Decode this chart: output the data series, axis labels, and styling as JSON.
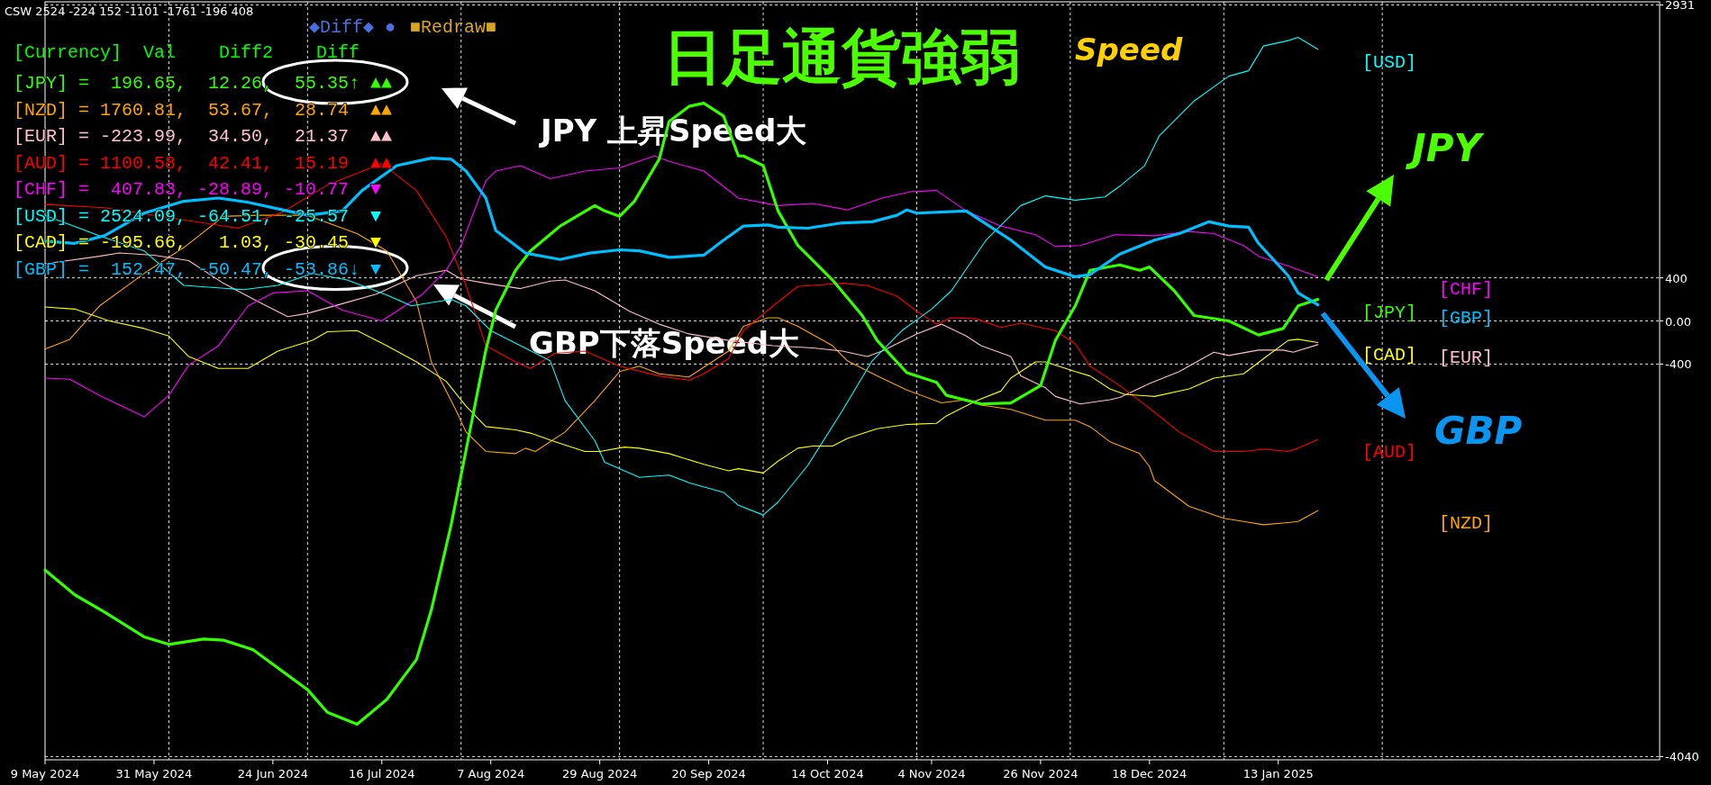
{
  "chart_data": {
    "type": "line",
    "title": "日足通貨強弱",
    "subtitle": "Speed",
    "xlim": [
      "2024-05-09",
      "2025-03-31"
    ],
    "ylim": [
      -4070,
      2960
    ],
    "xticks": [
      {
        "value": "2024-05-09",
        "label": "9 May 2024"
      },
      {
        "value": "2024-05-31",
        "label": "31 May 2024"
      },
      {
        "value": "2024-06-24",
        "label": "24 Jun 2024"
      },
      {
        "value": "2024-07-16",
        "label": "16 Jul 2024"
      },
      {
        "value": "2024-08-07",
        "label": "7 Aug 2024"
      },
      {
        "value": "2024-08-29",
        "label": "29 Aug 2024"
      },
      {
        "value": "2024-09-20",
        "label": "20 Sep 2024"
      },
      {
        "value": "2024-10-14",
        "label": "14 Oct 2024"
      },
      {
        "value": "2024-11-04",
        "label": "4 Nov 2024"
      },
      {
        "value": "2024-11-26",
        "label": "26 Nov 2024"
      },
      {
        "value": "2024-12-18",
        "label": "18 Dec 2024"
      },
      {
        "value": "2025-01-13",
        "label": "13 Jan 2025"
      },
      {
        "value": "2024-06-03",
        "label": null
      },
      {
        "value": "2024-07-01",
        "label": null
      },
      {
        "value": "2024-08-01",
        "label": null
      },
      {
        "value": "2024-09-02",
        "label": null
      },
      {
        "value": "2024-10-01",
        "label": null
      },
      {
        "value": "2024-11-01",
        "label": null
      },
      {
        "value": "2024-12-02",
        "label": null
      },
      {
        "value": "2025-01-02",
        "label": null
      },
      {
        "value": "2025-02-03",
        "label": null
      }
    ],
    "yticks": [
      2931,
      400,
      {
        "value": 0,
        "label": "0.00"
      },
      -400,
      -4040
    ],
    "grid": true,
    "series": [
      {
        "name": "[JPY]",
        "color": "#33ff00",
        "x": [
          "2024-05-09",
          "2024-05-15",
          "2024-05-21",
          "2024-05-29",
          "2024-06-03",
          "2024-06-10",
          "2024-06-14",
          "2024-06-20",
          "2024-07-01",
          "2024-07-05",
          "2024-07-11",
          "2024-07-17",
          "2024-07-23",
          "2024-07-26",
          "2024-07-30",
          "2024-08-02",
          "2024-08-06",
          "2024-08-08",
          "2024-08-12",
          "2024-08-15",
          "2024-08-21",
          "2024-08-28",
          "2024-08-30",
          "2024-09-02",
          "2024-09-05",
          "2024-09-10",
          "2024-09-12",
          "2024-09-16",
          "2024-09-19",
          "2024-09-23",
          "2024-09-26",
          "2024-09-27",
          "2024-10-01",
          "2024-10-04",
          "2024-10-08",
          "2024-10-15",
          "2024-10-21",
          "2024-10-24",
          "2024-10-30",
          "2024-11-05",
          "2024-11-07",
          "2024-11-14",
          "2024-11-20",
          "2024-11-26",
          "2024-11-29",
          "2024-12-03",
          "2024-12-06",
          "2024-12-12",
          "2024-12-16",
          "2024-12-18",
          "2024-12-23",
          "2024-12-27",
          "2025-01-03",
          "2025-01-09",
          "2025-01-14",
          "2025-01-17",
          "2025-01-21"
        ],
        "values": [
          -2310,
          -2540,
          -2700,
          -2930,
          -3000,
          -2950,
          -2960,
          -3050,
          -3420,
          -3630,
          -3740,
          -3510,
          -3140,
          -2680,
          -1890,
          -1200,
          -270,
          100,
          470,
          650,
          880,
          1070,
          1020,
          970,
          1110,
          1500,
          1850,
          1990,
          2020,
          1900,
          1530,
          1530,
          1440,
          1020,
          700,
          380,
          50,
          -180,
          -480,
          -570,
          -690,
          -770,
          -760,
          -600,
          -180,
          140,
          470,
          520,
          470,
          500,
          280,
          50,
          0,
          -130,
          -70,
          140,
          200
        ]
      },
      {
        "name": "[NZD]",
        "color": "#ffa500",
        "x": [
          "2024-05-09",
          "2024-05-14",
          "2024-05-20",
          "2024-05-29",
          "2024-06-06",
          "2024-06-11",
          "2024-06-14",
          "2024-06-21",
          "2024-07-01",
          "2024-07-11",
          "2024-07-17",
          "2024-07-23",
          "2024-07-26",
          "2024-07-31",
          "2024-08-02",
          "2024-08-06",
          "2024-08-12",
          "2024-08-14",
          "2024-08-16",
          "2024-08-22",
          "2024-08-28",
          "2024-09-02",
          "2024-09-06",
          "2024-09-10",
          "2024-09-16",
          "2024-09-24",
          "2024-09-27",
          "2024-10-02",
          "2024-10-04",
          "2024-10-08",
          "2024-10-15",
          "2024-10-18",
          "2024-10-24",
          "2024-10-30",
          "2024-11-06",
          "2024-11-11",
          "2024-11-14",
          "2024-11-20",
          "2024-11-27",
          "2024-12-03",
          "2024-12-06",
          "2024-12-10",
          "2024-12-16",
          "2024-12-18",
          "2024-12-19",
          "2024-12-26",
          "2025-01-02",
          "2025-01-06",
          "2025-01-10",
          "2025-01-15",
          "2025-01-17",
          "2025-01-21"
        ],
        "values": [
          -260,
          -170,
          140,
          440,
          680,
          860,
          970,
          980,
          980,
          810,
          650,
          180,
          -380,
          -830,
          -1030,
          -1210,
          -1230,
          -1180,
          -1210,
          -1030,
          -740,
          -470,
          -420,
          -490,
          -520,
          -280,
          -50,
          30,
          30,
          -50,
          -230,
          -370,
          -510,
          -640,
          -760,
          -730,
          -780,
          -820,
          -920,
          -920,
          -980,
          -1120,
          -1230,
          -1350,
          -1480,
          -1720,
          -1830,
          -1860,
          -1890,
          -1870,
          -1860,
          -1760
        ]
      },
      {
        "name": "[EUR]",
        "color": "#ffc0cb",
        "x": [
          "2024-05-09",
          "2024-05-20",
          "2024-05-24",
          "2024-05-31",
          "2024-06-07",
          "2024-06-14",
          "2024-06-21",
          "2024-06-27",
          "2024-07-01",
          "2024-07-08",
          "2024-07-15",
          "2024-07-23",
          "2024-07-29",
          "2024-08-01",
          "2024-08-06",
          "2024-08-13",
          "2024-08-19",
          "2024-08-22",
          "2024-08-28",
          "2024-09-04",
          "2024-09-10",
          "2024-09-16",
          "2024-09-24",
          "2024-10-03",
          "2024-10-11",
          "2024-10-17",
          "2024-10-22",
          "2024-10-25",
          "2024-11-01",
          "2024-11-06",
          "2024-11-11",
          "2024-11-14",
          "2024-11-20",
          "2024-11-22",
          "2024-11-27",
          "2024-11-29",
          "2024-12-04",
          "2024-12-10",
          "2024-12-12",
          "2024-12-18",
          "2024-12-24",
          "2024-12-31",
          "2025-01-03",
          "2025-01-09",
          "2025-01-14",
          "2025-01-16",
          "2025-01-21"
        ],
        "values": [
          530,
          600,
          630,
          610,
          560,
          350,
          180,
          40,
          70,
          160,
          250,
          420,
          470,
          390,
          350,
          300,
          370,
          380,
          280,
          90,
          -30,
          -120,
          -180,
          -230,
          -250,
          -280,
          -330,
          -280,
          -120,
          -30,
          -140,
          -230,
          -330,
          -510,
          -620,
          -700,
          -770,
          -730,
          -710,
          -580,
          -470,
          -290,
          -320,
          -270,
          -270,
          -290,
          -220
        ]
      },
      {
        "name": "[AUD]",
        "color": "#ff0000",
        "x": [
          "2024-05-09",
          "2024-05-21",
          "2024-06-17",
          "2024-06-26",
          "2024-07-05",
          "2024-07-16",
          "2024-07-23",
          "2024-07-29",
          "2024-08-02",
          "2024-08-06",
          "2024-08-12",
          "2024-08-15",
          "2024-08-20",
          "2024-08-26",
          "2024-09-02",
          "2024-09-10",
          "2024-09-16",
          "2024-09-19",
          "2024-09-24",
          "2024-09-27",
          "2024-10-03",
          "2024-10-08",
          "2024-10-11",
          "2024-10-17",
          "2024-10-22",
          "2024-10-28",
          "2024-11-01",
          "2024-11-05",
          "2024-11-08",
          "2024-11-13",
          "2024-11-18",
          "2024-11-22",
          "2024-11-29",
          "2024-12-03",
          "2024-12-06",
          "2024-12-12",
          "2024-12-18",
          "2024-12-24",
          "2024-12-31",
          "2025-01-06",
          "2025-01-10",
          "2025-01-15",
          "2025-01-17",
          "2025-01-21"
        ],
        "values": [
          1080,
          1050,
          860,
          1010,
          1260,
          1460,
          1210,
          780,
          330,
          -230,
          -380,
          -440,
          -300,
          -280,
          -420,
          -510,
          -550,
          -490,
          -350,
          -90,
          140,
          320,
          330,
          350,
          330,
          230,
          90,
          -30,
          30,
          20,
          -60,
          -20,
          -90,
          -210,
          -420,
          -600,
          -810,
          -1030,
          -1210,
          -1210,
          -1190,
          -1210,
          -1180,
          -1100
        ]
      },
      {
        "name": "[CHF]",
        "color": "#ff00ff",
        "x": [
          "2024-05-09",
          "2024-05-14",
          "2024-05-20",
          "2024-05-29",
          "2024-06-03",
          "2024-06-07",
          "2024-06-13",
          "2024-06-19",
          "2024-06-24",
          "2024-07-01",
          "2024-07-08",
          "2024-07-16",
          "2024-07-24",
          "2024-07-29",
          "2024-08-01",
          "2024-08-06",
          "2024-08-08",
          "2024-08-13",
          "2024-08-19",
          "2024-08-26",
          "2024-09-02",
          "2024-09-09",
          "2024-09-12",
          "2024-09-19",
          "2024-09-26",
          "2024-10-04",
          "2024-10-11",
          "2024-10-18",
          "2024-10-25",
          "2024-10-31",
          "2024-11-05",
          "2024-11-11",
          "2024-11-18",
          "2024-11-25",
          "2024-11-29",
          "2024-12-04",
          "2024-12-11",
          "2024-12-19",
          "2024-12-26",
          "2024-12-31",
          "2025-01-06",
          "2025-01-09",
          "2025-01-15",
          "2025-01-21"
        ],
        "values": [
          -530,
          -540,
          -690,
          -890,
          -690,
          -410,
          -230,
          140,
          260,
          280,
          100,
          0,
          240,
          470,
          700,
          1300,
          1390,
          1440,
          1320,
          1390,
          1420,
          1530,
          1480,
          1390,
          1140,
          1070,
          1090,
          1030,
          1140,
          1200,
          1210,
          1020,
          880,
          800,
          690,
          700,
          800,
          790,
          830,
          810,
          700,
          600,
          510,
          410
        ]
      },
      {
        "name": "[USD]",
        "color": "#00ffff",
        "x": [
          "2024-05-09",
          "2024-05-20",
          "2024-05-29",
          "2024-06-06",
          "2024-06-18",
          "2024-06-25",
          "2024-07-02",
          "2024-07-09",
          "2024-07-17",
          "2024-07-22",
          "2024-07-30",
          "2024-08-02",
          "2024-08-07",
          "2024-08-13",
          "2024-08-19",
          "2024-08-22",
          "2024-08-28",
          "2024-08-30",
          "2024-09-06",
          "2024-09-12",
          "2024-09-16",
          "2024-09-23",
          "2024-09-26",
          "2024-10-01",
          "2024-10-04",
          "2024-10-10",
          "2024-10-17",
          "2024-10-23",
          "2024-10-29",
          "2024-11-04",
          "2024-11-08",
          "2024-11-15",
          "2024-11-22",
          "2024-11-27",
          "2024-12-03",
          "2024-12-09",
          "2024-12-12",
          "2024-12-17",
          "2024-12-20",
          "2024-12-27",
          "2025-01-03",
          "2025-01-07",
          "2025-01-10",
          "2025-01-15",
          "2025-01-17",
          "2025-01-21"
        ],
        "values": [
          980,
          790,
          650,
          330,
          290,
          330,
          440,
          380,
          240,
          140,
          200,
          140,
          -90,
          -230,
          -370,
          -740,
          -1110,
          -1310,
          -1450,
          -1430,
          -1500,
          -1590,
          -1710,
          -1800,
          -1680,
          -1340,
          -830,
          -370,
          -90,
          110,
          280,
          750,
          1070,
          1160,
          1120,
          1150,
          1250,
          1440,
          1720,
          2040,
          2270,
          2320,
          2550,
          2600,
          2630,
          2520
        ]
      },
      {
        "name": "[CAD]",
        "color": "#ffff00",
        "x": [
          "2024-05-09",
          "2024-05-15",
          "2024-05-22",
          "2024-05-29",
          "2024-06-03",
          "2024-06-07",
          "2024-06-13",
          "2024-06-19",
          "2024-06-25",
          "2024-07-02",
          "2024-07-05",
          "2024-07-11",
          "2024-07-17",
          "2024-07-23",
          "2024-07-29",
          "2024-08-02",
          "2024-08-06",
          "2024-08-12",
          "2024-08-15",
          "2024-08-20",
          "2024-08-26",
          "2024-08-29",
          "2024-09-03",
          "2024-09-06",
          "2024-09-12",
          "2024-09-19",
          "2024-09-24",
          "2024-09-26",
          "2024-10-01",
          "2024-10-04",
          "2024-10-08",
          "2024-10-11",
          "2024-10-15",
          "2024-10-18",
          "2024-10-24",
          "2024-10-30",
          "2024-11-05",
          "2024-11-07",
          "2024-11-13",
          "2024-11-18",
          "2024-11-20",
          "2024-11-25",
          "2024-11-27",
          "2024-12-03",
          "2024-12-06",
          "2024-12-10",
          "2024-12-13",
          "2024-12-19",
          "2024-12-26",
          "2024-12-31",
          "2025-01-06",
          "2025-01-10",
          "2025-01-15",
          "2025-01-17",
          "2025-01-21"
        ],
        "values": [
          130,
          110,
          0,
          -70,
          -140,
          -330,
          -440,
          -440,
          -280,
          -180,
          -100,
          -90,
          -230,
          -380,
          -560,
          -790,
          -980,
          -1010,
          -1040,
          -1120,
          -1210,
          -1210,
          -1170,
          -1180,
          -1230,
          -1330,
          -1390,
          -1370,
          -1410,
          -1300,
          -1180,
          -1160,
          -1160,
          -1090,
          -1000,
          -960,
          -950,
          -880,
          -740,
          -650,
          -530,
          -380,
          -380,
          -470,
          -510,
          -630,
          -680,
          -700,
          -630,
          -530,
          -490,
          -350,
          -180,
          -170,
          -200
        ]
      },
      {
        "name": "[GBP]",
        "color": "#00bfff",
        "x": [
          "2024-05-09",
          "2024-05-15",
          "2024-05-21",
          "2024-05-29",
          "2024-06-06",
          "2024-06-13",
          "2024-06-19",
          "2024-06-27",
          "2024-07-01",
          "2024-07-08",
          "2024-07-12",
          "2024-07-19",
          "2024-07-26",
          "2024-07-30",
          "2024-08-02",
          "2024-08-06",
          "2024-08-08",
          "2024-08-14",
          "2024-08-21",
          "2024-08-27",
          "2024-09-02",
          "2024-09-06",
          "2024-09-12",
          "2024-09-19",
          "2024-09-23",
          "2024-09-27",
          "2024-10-02",
          "2024-10-04",
          "2024-10-10",
          "2024-10-17",
          "2024-10-23",
          "2024-10-28",
          "2024-10-30",
          "2024-11-01",
          "2024-11-11",
          "2024-11-14",
          "2024-11-20",
          "2024-11-27",
          "2024-12-03",
          "2024-12-06",
          "2024-12-12",
          "2024-12-19",
          "2024-12-24",
          "2024-12-30",
          "2025-01-03",
          "2025-01-07",
          "2025-01-09",
          "2025-01-15",
          "2025-01-17",
          "2025-01-21"
        ],
        "values": [
          740,
          720,
          790,
          1000,
          1110,
          1140,
          1100,
          1020,
          980,
          1020,
          1210,
          1440,
          1510,
          1500,
          1390,
          1140,
          840,
          630,
          570,
          630,
          660,
          650,
          590,
          610,
          750,
          880,
          890,
          870,
          860,
          910,
          920,
          980,
          1030,
          1000,
          1020,
          930,
          750,
          500,
          410,
          430,
          620,
          750,
          810,
          920,
          880,
          870,
          720,
          420,
          260,
          150
        ]
      }
    ],
    "annotations": [
      "CSW 2524 -224 152 -1101 -1761 -196 408",
      "◆Diff◆ ●",
      "■Redraw■",
      "[Currency]  Val    Diff2    Diff",
      "[JPY] =  196.65,  12.26,  55.35↑ ▲▲",
      "[NZD] = 1760.81,  53.67,  28.74  ▲▲",
      "[EUR] = -223.99,  34.50,  21.37  ▲▲",
      "[AUD] = 1100.58,  42.41,  15.19  ▲▲",
      "[CHF] =  407.83, -28.89, -10.77  ▼",
      "[USD] = 2524.09, -64.51, -25.57  ▼",
      "[CAD] = -195.66,   1.03, -30.45  ▼",
      "[GBP] =  152.47, -50.47, -53.86↓ ▼",
      "JPY 上昇Speed大",
      "GBP下落Speed大",
      "JPY",
      "GBP"
    ]
  }
}
